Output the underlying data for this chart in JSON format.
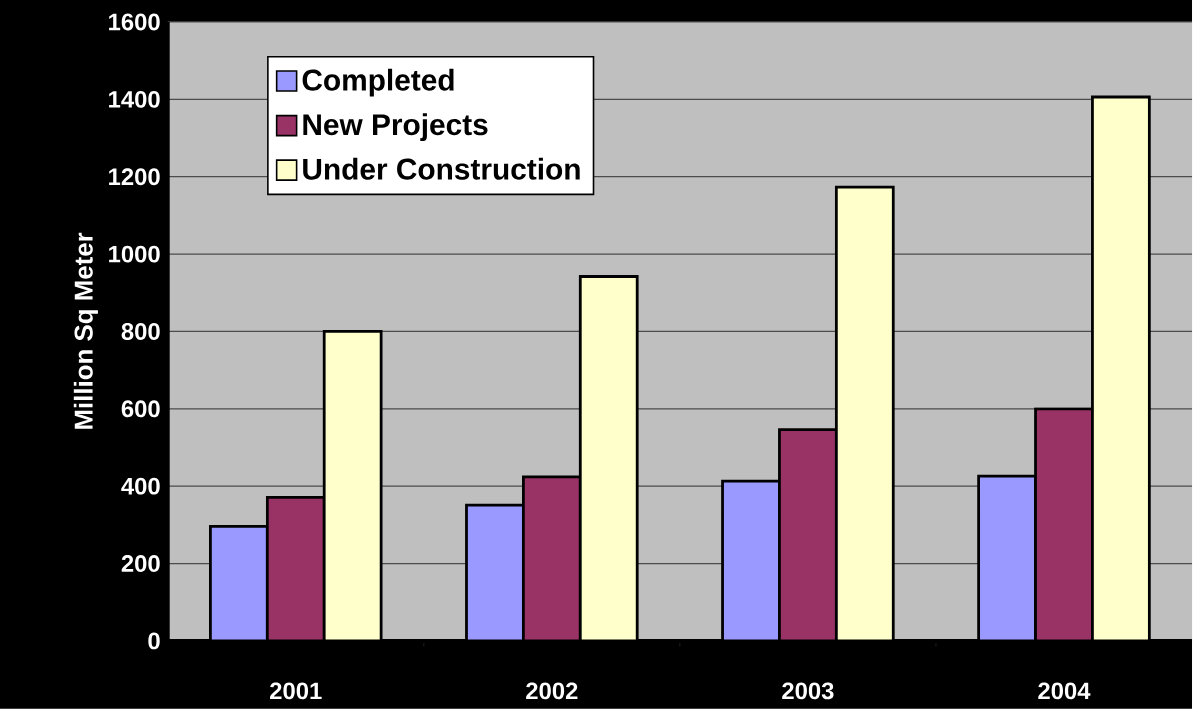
{
  "chart_data": {
    "type": "bar",
    "ylabel": "Million Sq Meter",
    "categories": [
      "2001",
      "2002",
      "2003",
      "2004"
    ],
    "series": [
      {
        "name": "Completed",
        "color": "#9999ff",
        "values": [
          296,
          351,
          413,
          426
        ]
      },
      {
        "name": "New Projects",
        "color": "#993366",
        "values": [
          371,
          424,
          546,
          600
        ]
      },
      {
        "name": "Under Construction",
        "color": "#ffffcc",
        "values": [
          800,
          942,
          1173,
          1406
        ]
      }
    ],
    "ylim": [
      0,
      1600
    ],
    "yticks": [
      0,
      200,
      400,
      600,
      800,
      1000,
      1200,
      1400,
      1600
    ],
    "grid": "y",
    "legend": "top left"
  }
}
